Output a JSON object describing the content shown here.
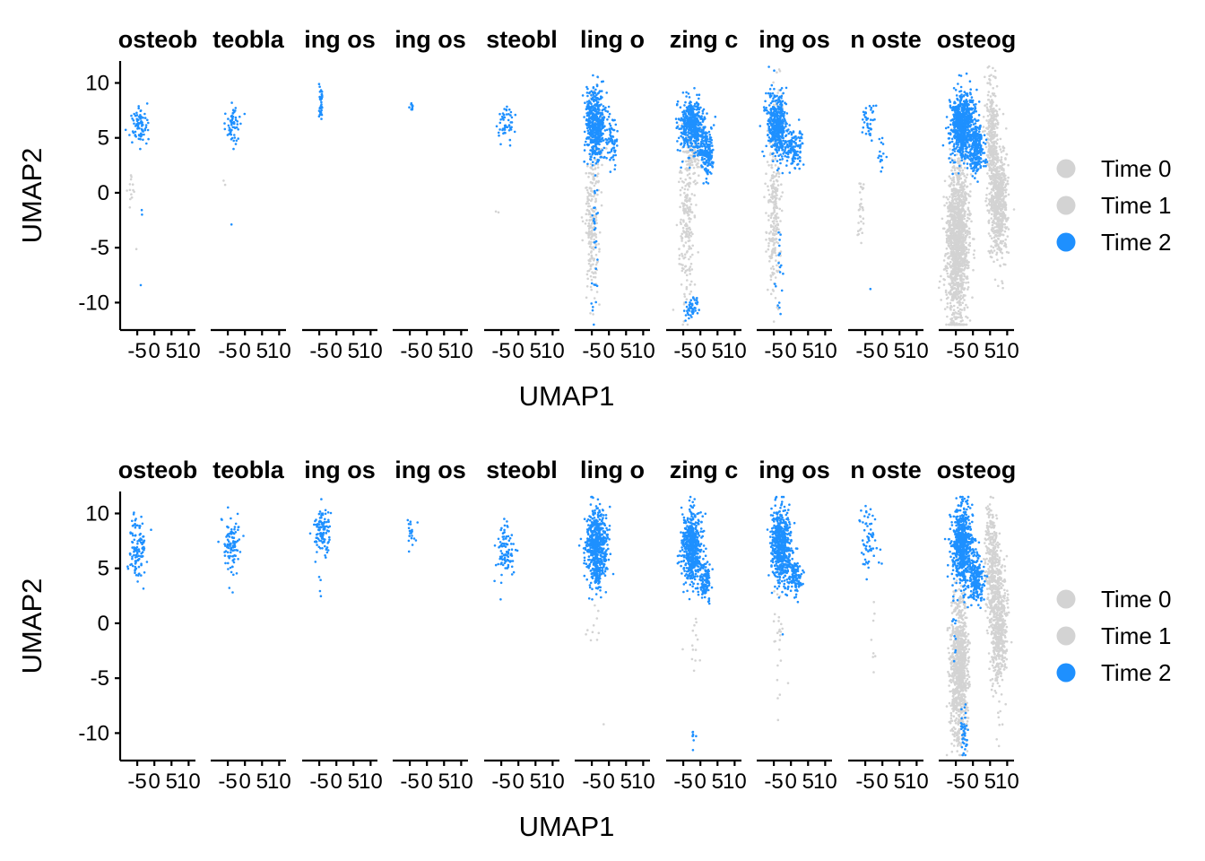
{
  "colors": {
    "time_0": "#d3d3d3",
    "time_1": "#d3d3d3",
    "time_2": "#1e90ff"
  },
  "chart_data": [
    {
      "type": "scatter",
      "panel": "top",
      "xlabel": "UMAP1",
      "ylabel": "UMAP2",
      "xlim": [
        -10,
        12
      ],
      "ylim": [
        -12.5,
        12
      ],
      "x_ticks": [
        -5,
        0,
        5,
        10
      ],
      "x_tick_labels": [
        "-5",
        "0",
        "5",
        "10"
      ],
      "y_ticks": [
        10,
        5,
        0,
        -5,
        -10
      ],
      "y_tick_labels": [
        "10",
        "5",
        "0",
        "-5",
        "-10"
      ],
      "facet_titles": [
        "osteob",
        "teobla",
        "ing os",
        "ing os",
        "steobl",
        "ling o",
        "zing c",
        "ing os",
        "n oste",
        "osteog"
      ],
      "legend": {
        "position": "right",
        "entries": [
          "Time 0",
          "Time 1",
          "Time 2"
        ]
      },
      "series": [
        {
          "name": "Time 0",
          "color": "#d3d3d3"
        },
        {
          "name": "Time 1",
          "color": "#d3d3d3"
        },
        {
          "name": "Time 2",
          "color": "#1e90ff"
        }
      ],
      "facets": [
        {
          "clusters": [
            {
              "t": 2,
              "cx": -4.5,
              "cy": 6,
              "sx": 1.4,
              "sy": 1,
              "n": 80
            },
            {
              "t": 0,
              "cx": -7,
              "cy": 0,
              "sx": 0.5,
              "sy": 1,
              "n": 14
            },
            {
              "t": 0,
              "cx": -5.5,
              "cy": -5,
              "sx": 0.2,
              "sy": 0.2,
              "n": 1
            },
            {
              "t": 2,
              "cx": -3.5,
              "cy": -1.5,
              "sx": 0.2,
              "sy": 0.3,
              "n": 2
            },
            {
              "t": 2,
              "cx": -3.8,
              "cy": -8.5,
              "sx": 0.1,
              "sy": 0.1,
              "n": 1
            }
          ]
        },
        {
          "clusters": [
            {
              "t": 2,
              "cx": -3.5,
              "cy": 6.2,
              "sx": 1,
              "sy": 0.8,
              "n": 60
            },
            {
              "t": 0,
              "cx": -6.5,
              "cy": 0.5,
              "sx": 0.6,
              "sy": 0.3,
              "n": 2
            },
            {
              "t": 2,
              "cx": -4,
              "cy": -3,
              "sx": 0.1,
              "sy": 0.1,
              "n": 1
            }
          ]
        },
        {
          "clusters": [
            {
              "t": 2,
              "cx": -4.5,
              "cy": 8.3,
              "sx": 0.3,
              "sy": 0.7,
              "n": 40
            }
          ]
        },
        {
          "clusters": [
            {
              "t": 2,
              "cx": -4.5,
              "cy": 7.8,
              "sx": 0.3,
              "sy": 0.2,
              "n": 10
            }
          ]
        },
        {
          "clusters": [
            {
              "t": 2,
              "cx": -3.5,
              "cy": 6.2,
              "sx": 1.2,
              "sy": 0.9,
              "n": 50
            },
            {
              "t": 0,
              "cx": -6,
              "cy": -1.3,
              "sx": 0.3,
              "sy": 0.3,
              "n": 2
            }
          ]
        },
        {
          "clusters": [
            {
              "t": 0,
              "cx": -5,
              "cy": -3,
              "sx": 1,
              "sy": 2.8,
              "n": 200
            },
            {
              "t": 0,
              "cx": -4,
              "cy": 4,
              "sx": 1.5,
              "sy": 3,
              "n": 50
            },
            {
              "t": 2,
              "cx": -4,
              "cy": 6.2,
              "sx": 1.4,
              "sy": 1.6,
              "n": 500
            },
            {
              "t": 2,
              "cx": 1,
              "cy": 4.8,
              "sx": 0.8,
              "sy": 1.2,
              "n": 60
            },
            {
              "t": 2,
              "cx": -4,
              "cy": -5,
              "sx": 0.5,
              "sy": 4,
              "n": 30
            }
          ]
        },
        {
          "clusters": [
            {
              "t": 0,
              "cx": -4,
              "cy": -3,
              "sx": 1.2,
              "sy": 3.5,
              "n": 200
            },
            {
              "t": 0,
              "cx": -2,
              "cy": 3.5,
              "sx": 1.4,
              "sy": 1.2,
              "n": 100
            },
            {
              "t": 2,
              "cx": -2.5,
              "cy": 6.2,
              "sx": 1.8,
              "sy": 1.2,
              "n": 450
            },
            {
              "t": 2,
              "cx": 1.8,
              "cy": 3.8,
              "sx": 1,
              "sy": 1.2,
              "n": 180
            },
            {
              "t": 2,
              "cx": -2.5,
              "cy": -10.5,
              "sx": 0.9,
              "sy": 0.6,
              "n": 45
            }
          ]
        },
        {
          "clusters": [
            {
              "t": 0,
              "cx": -5,
              "cy": -2.5,
              "sx": 1,
              "sy": 3.2,
              "n": 220
            },
            {
              "t": 0,
              "cx": -4.5,
              "cy": 5,
              "sx": 1.2,
              "sy": 3,
              "n": 60
            },
            {
              "t": 2,
              "cx": -4,
              "cy": 6.2,
              "sx": 1.4,
              "sy": 1.4,
              "n": 420
            },
            {
              "t": 2,
              "cx": 0.5,
              "cy": 4,
              "sx": 1.5,
              "sy": 0.9,
              "n": 140
            },
            {
              "t": 2,
              "cx": -3.5,
              "cy": -8,
              "sx": 0.6,
              "sy": 2.5,
              "n": 18
            }
          ]
        },
        {
          "clusters": [
            {
              "t": 0,
              "cx": -6,
              "cy": -1.5,
              "sx": 0.6,
              "sy": 1.5,
              "n": 30
            },
            {
              "t": 2,
              "cx": -4,
              "cy": 6.5,
              "sx": 1.2,
              "sy": 1,
              "n": 40
            },
            {
              "t": 2,
              "cx": -0.5,
              "cy": 3.5,
              "sx": 0.6,
              "sy": 1,
              "n": 15
            },
            {
              "t": 2,
              "cx": -3.5,
              "cy": -8.7,
              "sx": 0.1,
              "sy": 0.1,
              "n": 1
            }
          ]
        },
        {
          "clusters": [
            {
              "t": 0,
              "cx": -4.5,
              "cy": -4.5,
              "sx": 1.6,
              "sy": 3.8,
              "n": 1400
            },
            {
              "t": 0,
              "cx": 7.5,
              "cy": -1,
              "sx": 1.3,
              "sy": 2.5,
              "n": 600
            },
            {
              "t": 0,
              "cx": 5.5,
              "cy": 5,
              "sx": 0.9,
              "sy": 2.5,
              "n": 300
            },
            {
              "t": 2,
              "cx": -3,
              "cy": 6.2,
              "sx": 1.6,
              "sy": 1.5,
              "n": 700
            },
            {
              "t": 2,
              "cx": 1,
              "cy": 4,
              "sx": 1.1,
              "sy": 1.1,
              "n": 250
            }
          ]
        }
      ]
    },
    {
      "type": "scatter",
      "panel": "bottom",
      "xlabel": "UMAP1",
      "ylabel": "UMAP2",
      "xlim": [
        -10,
        12
      ],
      "ylim": [
        -12.5,
        12
      ],
      "x_ticks": [
        -5,
        0,
        5,
        10
      ],
      "x_tick_labels": [
        "-5",
        "0",
        "5",
        "10"
      ],
      "y_ticks": [
        10,
        5,
        0,
        -5,
        -10
      ],
      "y_tick_labels": [
        "10",
        "5",
        "0",
        "-5",
        "-10"
      ],
      "facet_titles": [
        "osteob",
        "teobla",
        "ing os",
        "ing os",
        "steobl",
        "ling o",
        "zing c",
        "ing os",
        "n oste",
        "osteog"
      ],
      "legend": {
        "position": "right",
        "entries": [
          "Time 0",
          "Time 1",
          "Time 2"
        ]
      },
      "series": [
        {
          "name": "Time 0",
          "color": "#d3d3d3"
        },
        {
          "name": "Time 1",
          "color": "#d3d3d3"
        },
        {
          "name": "Time 2",
          "color": "#1e90ff"
        }
      ],
      "facets": [
        {
          "clusters": [
            {
              "t": 2,
              "cx": -5,
              "cy": 6.8,
              "sx": 1.3,
              "sy": 1.4,
              "n": 110
            }
          ]
        },
        {
          "clusters": [
            {
              "t": 2,
              "cx": -4,
              "cy": 7,
              "sx": 1.3,
              "sy": 1.3,
              "n": 100
            }
          ]
        },
        {
          "clusters": [
            {
              "t": 2,
              "cx": -4,
              "cy": 8.5,
              "sx": 1.2,
              "sy": 1.1,
              "n": 110
            },
            {
              "t": 2,
              "cx": -4.5,
              "cy": 3,
              "sx": 0.3,
              "sy": 1,
              "n": 4
            }
          ]
        },
        {
          "clusters": [
            {
              "t": 2,
              "cx": -4.5,
              "cy": 8.2,
              "sx": 0.7,
              "sy": 0.9,
              "n": 20
            }
          ]
        },
        {
          "clusters": [
            {
              "t": 2,
              "cx": -3.5,
              "cy": 6.8,
              "sx": 1.3,
              "sy": 1.4,
              "n": 90
            }
          ]
        },
        {
          "clusters": [
            {
              "t": 2,
              "cx": -3.5,
              "cy": 7,
              "sx": 1.5,
              "sy": 1.8,
              "n": 600
            },
            {
              "t": 0,
              "cx": -4.5,
              "cy": 0,
              "sx": 1,
              "sy": 1,
              "n": 10
            },
            {
              "t": 0,
              "cx": -1.5,
              "cy": -9.2,
              "sx": 0.1,
              "sy": 0.1,
              "n": 1
            }
          ]
        },
        {
          "clusters": [
            {
              "t": 2,
              "cx": -2.5,
              "cy": 6.8,
              "sx": 1.5,
              "sy": 1.8,
              "n": 550
            },
            {
              "t": 2,
              "cx": 1.5,
              "cy": 3.8,
              "sx": 0.8,
              "sy": 0.9,
              "n": 100
            },
            {
              "t": 0,
              "cx": -2,
              "cy": -1.5,
              "sx": 1,
              "sy": 1.5,
              "n": 14
            },
            {
              "t": 2,
              "cx": -2,
              "cy": -10,
              "sx": 0.4,
              "sy": 1,
              "n": 8
            }
          ]
        },
        {
          "clusters": [
            {
              "t": 2,
              "cx": -3,
              "cy": 7,
              "sx": 1.5,
              "sy": 1.7,
              "n": 550
            },
            {
              "t": 2,
              "cx": 1,
              "cy": 4.2,
              "sx": 1,
              "sy": 0.8,
              "n": 110
            },
            {
              "t": 0,
              "cx": -3.5,
              "cy": -2,
              "sx": 0.8,
              "sy": 2.5,
              "n": 25
            }
          ]
        },
        {
          "clusters": [
            {
              "t": 2,
              "cx": -4,
              "cy": 7.5,
              "sx": 1.3,
              "sy": 1.5,
              "n": 60
            },
            {
              "t": 0,
              "cx": -2.5,
              "cy": -1.5,
              "sx": 0.3,
              "sy": 1.5,
              "n": 8
            }
          ]
        },
        {
          "clusters": [
            {
              "t": 0,
              "cx": -4,
              "cy": -4,
              "sx": 1.3,
              "sy": 3.5,
              "n": 900
            },
            {
              "t": 0,
              "cx": 7.5,
              "cy": 0,
              "sx": 1.2,
              "sy": 3,
              "n": 600
            },
            {
              "t": 0,
              "cx": 5.5,
              "cy": 5.5,
              "sx": 0.9,
              "sy": 2.5,
              "n": 300
            },
            {
              "t": 2,
              "cx": -3,
              "cy": 7,
              "sx": 1.5,
              "sy": 1.8,
              "n": 650
            },
            {
              "t": 2,
              "cx": 1,
              "cy": 4,
              "sx": 1.1,
              "sy": 1.1,
              "n": 200
            },
            {
              "t": 2,
              "cx": -2.5,
              "cy": -10,
              "sx": 0.5,
              "sy": 1.2,
              "n": 40
            },
            {
              "t": 2,
              "cx": -5.5,
              "cy": -1,
              "sx": 0.3,
              "sy": 1.2,
              "n": 10
            }
          ]
        }
      ]
    }
  ]
}
